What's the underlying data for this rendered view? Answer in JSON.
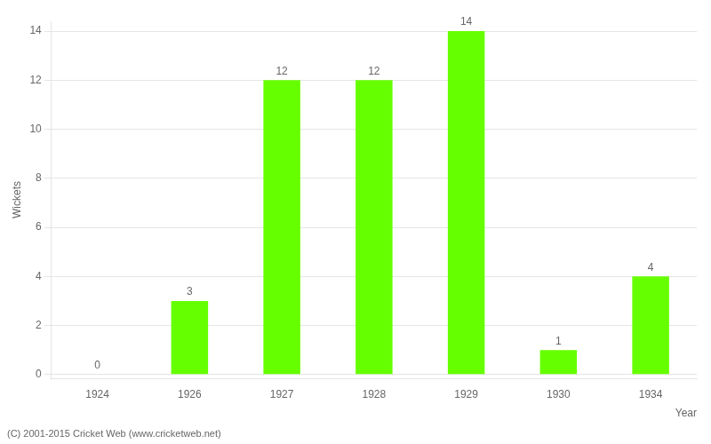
{
  "chart_data": {
    "type": "bar",
    "categories": [
      "1924",
      "1926",
      "1927",
      "1928",
      "1929",
      "1930",
      "1934"
    ],
    "values": [
      0,
      3,
      12,
      12,
      14,
      1,
      4
    ],
    "color": "#66ff00",
    "xlabel": "Year",
    "ylabel": "Wickets",
    "ylim": [
      -0.15,
      14.4
    ],
    "yticks": [
      0,
      2,
      4,
      6,
      8,
      10,
      12,
      14
    ],
    "grid": true,
    "data_labels": true,
    "annotations": [
      "(C) 2001-2015 Cricket Web (www.cricketweb.net)"
    ]
  }
}
